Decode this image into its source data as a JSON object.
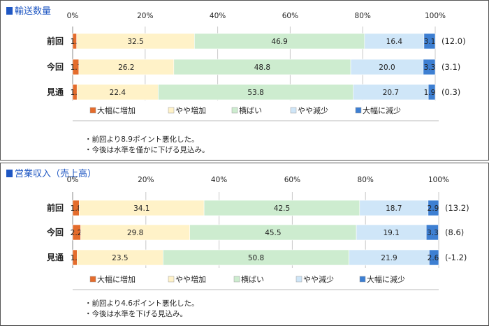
{
  "chart_data": [
    {
      "type": "bar",
      "stacked": true,
      "orientation": "horizontal",
      "title": "■輸送数量",
      "xlim": [
        0,
        100
      ],
      "x_ticks": [
        "0%",
        "20%",
        "40%",
        "60%",
        "80%",
        "100%"
      ],
      "categories": [
        "前回",
        "今回",
        "見通"
      ],
      "series": [
        {
          "name": "大幅に増加",
          "color": "#e46c2c",
          "values": [
            1.1,
            1.7,
            1.2
          ]
        },
        {
          "name": "やや増加",
          "color": "#fff2c8",
          "values": [
            32.5,
            26.2,
            22.4
          ]
        },
        {
          "name": "横ばい",
          "color": "#cdeccf",
          "values": [
            46.9,
            48.8,
            53.8
          ]
        },
        {
          "name": "やや減少",
          "color": "#cfe6f8",
          "values": [
            16.4,
            20.0,
            20.7
          ]
        },
        {
          "name": "大幅に減少",
          "color": "#3d7fd2",
          "values": [
            3.1,
            3.3,
            1.9
          ]
        }
      ],
      "value_labels": [
        [
          "1.1",
          "32.5",
          "46.9",
          "16.4",
          "3.1"
        ],
        [
          "1.7",
          "26.2",
          "48.8",
          "20.0",
          "3.3"
        ],
        [
          "1.2",
          "22.4",
          "53.8",
          "20.7",
          "1.9"
        ]
      ],
      "di_labels": [
        "(12.0)",
        "(3.1)",
        "(0.3)"
      ],
      "legend_position": "bottom",
      "notes": [
        "前回より8.9ポイント悪化した。",
        "今後は水準を僅かに下げる見込み。"
      ]
    },
    {
      "type": "bar",
      "stacked": true,
      "orientation": "horizontal",
      "title": "■営業収入（売上高）",
      "xlim": [
        0,
        100
      ],
      "x_ticks": [
        "0%",
        "20%",
        "40%",
        "60%",
        "80%",
        "100%"
      ],
      "categories": [
        "前回",
        "今回",
        "見通"
      ],
      "series": [
        {
          "name": "大幅に増加",
          "color": "#e46c2c",
          "values": [
            1.8,
            2.2,
            1.2
          ]
        },
        {
          "name": "やや増加",
          "color": "#fff2c8",
          "values": [
            34.1,
            29.8,
            23.5
          ]
        },
        {
          "name": "横ばい",
          "color": "#cdeccf",
          "values": [
            42.5,
            45.5,
            50.8
          ]
        },
        {
          "name": "やや減少",
          "color": "#cfe6f8",
          "values": [
            18.7,
            19.1,
            21.9
          ]
        },
        {
          "name": "大幅に減少",
          "color": "#3d7fd2",
          "values": [
            2.9,
            3.3,
            2.6
          ]
        }
      ],
      "value_labels": [
        [
          "1.8",
          "34.1",
          "42.5",
          "18.7",
          "2.9"
        ],
        [
          "2.2",
          "29.8",
          "45.5",
          "19.1",
          "3.3"
        ],
        [
          "1.2",
          "23.5",
          "50.8",
          "21.9",
          "2.6"
        ]
      ],
      "di_labels": [
        "(13.2)",
        "(8.6)",
        "(-1.2)"
      ],
      "legend_position": "bottom",
      "notes": [
        "前回より4.6ポイント悪化した。",
        "今後は水準を下げる見込み。"
      ]
    }
  ]
}
